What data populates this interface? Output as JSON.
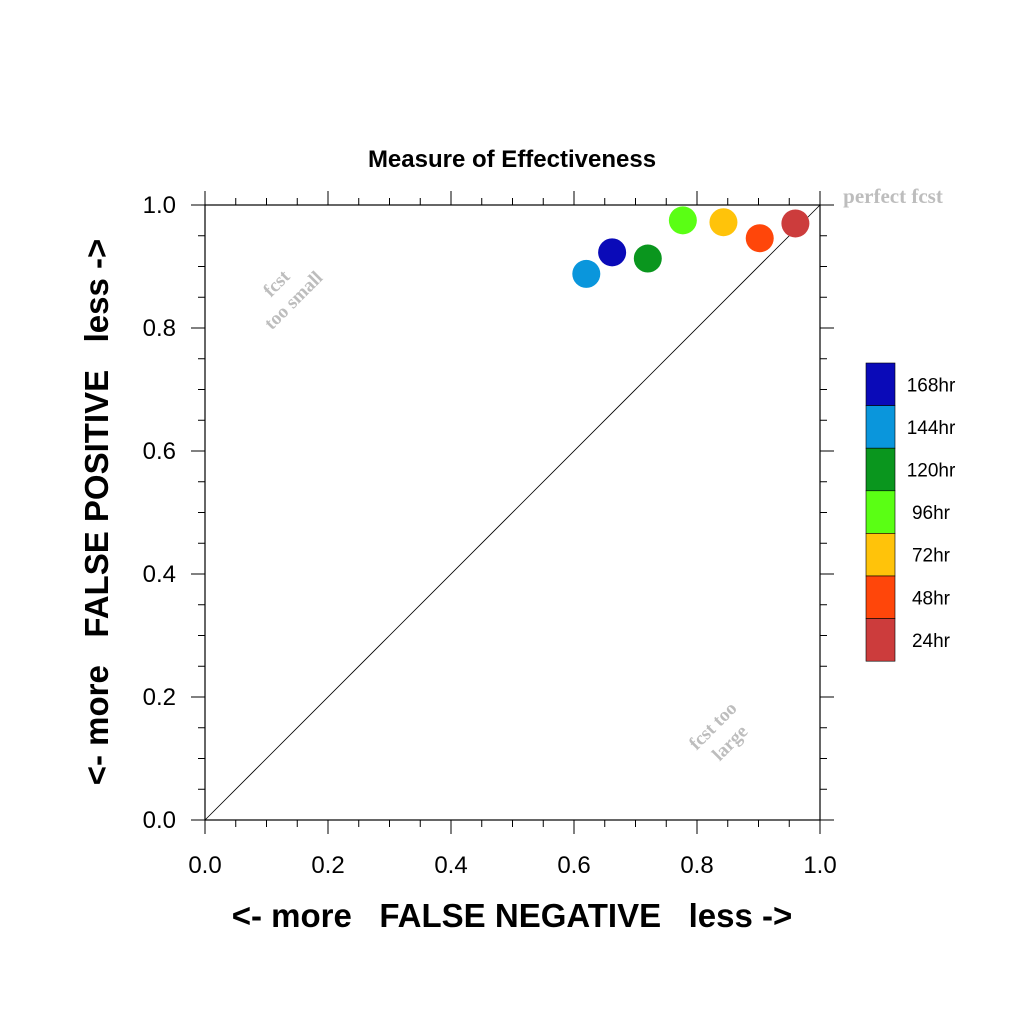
{
  "chart_data": {
    "type": "scatter",
    "title": "Measure of Effectiveness",
    "xlabel": "<- more   FALSE NEGATIVE   less ->",
    "ylabel": "<- more   FALSE POSITIVE   less ->",
    "xlim": [
      0.0,
      1.0
    ],
    "ylim": [
      0.0,
      1.0
    ],
    "xticks": [
      "0.0",
      "0.2",
      "0.4",
      "0.6",
      "0.8",
      "1.0"
    ],
    "yticks": [
      "0.0",
      "0.2",
      "0.4",
      "0.6",
      "0.8",
      "1.0"
    ],
    "grid": false,
    "diagonal_reference": true,
    "annotations": {
      "perfect": "perfect fcst",
      "small": [
        "fcst",
        "too small"
      ],
      "large": [
        "fcst too",
        "large"
      ]
    },
    "legend_position": "right",
    "series": [
      {
        "name": "168hr",
        "color": "#0a0ab8",
        "x": 0.662,
        "y": 0.923
      },
      {
        "name": "144hr",
        "color": "#0a96dc",
        "x": 0.62,
        "y": 0.888
      },
      {
        "name": "120hr",
        "color": "#0a961e",
        "x": 0.72,
        "y": 0.913
      },
      {
        "name": "96hr",
        "color": "#5aff14",
        "x": 0.777,
        "y": 0.975
      },
      {
        "name": "72hr",
        "color": "#ffc30a",
        "x": 0.843,
        "y": 0.972
      },
      {
        "name": "48hr",
        "color": "#ff460a",
        "x": 0.902,
        "y": 0.946
      },
      {
        "name": "24hr",
        "color": "#cc3c3c",
        "x": 0.96,
        "y": 0.97
      }
    ]
  }
}
